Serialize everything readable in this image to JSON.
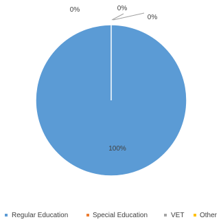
{
  "chart_data": {
    "type": "pie",
    "categories": [
      "Regular Education",
      "Special Education",
      "VET",
      "Other"
    ],
    "values": [
      100,
      0,
      0,
      0
    ],
    "data_labels": [
      "100%",
      "0%",
      "0%",
      "0%"
    ],
    "colors": [
      "#5B9BD5",
      "#ED7D31",
      "#A5A5A5",
      "#FFC000"
    ],
    "legend_position": "bottom",
    "start_angle": "top, clockwise"
  }
}
